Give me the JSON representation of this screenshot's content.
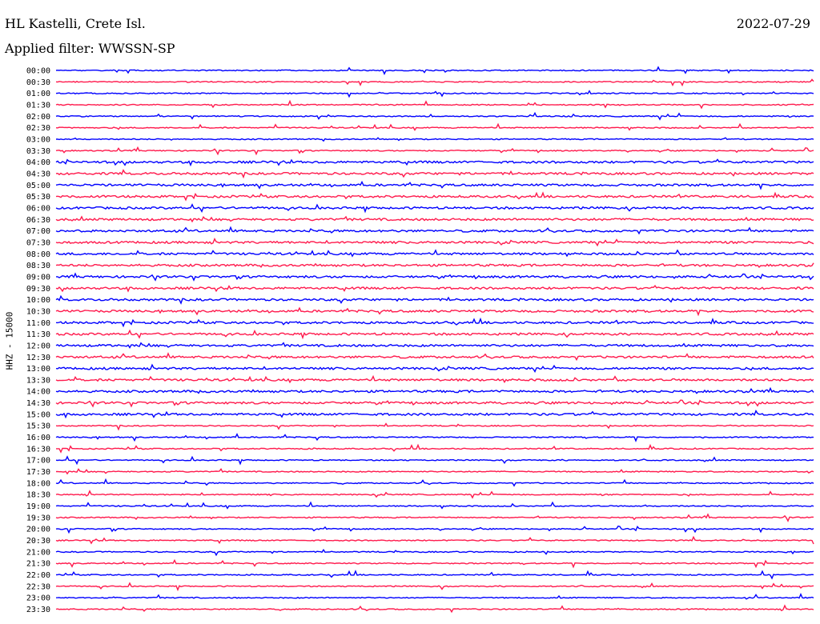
{
  "header": {
    "station": "HL Kastelli, Crete Isl.",
    "date": "2022-07-29",
    "filter": "Applied filter: WWSSN-SP"
  },
  "axis": {
    "channel_label": "HHZ - 15000"
  },
  "chart_data": {
    "type": "line",
    "title": "HL Kastelli, Crete Isl.",
    "date": "2022-07-29",
    "filter": "WWSSN-SP",
    "ylabel": "HHZ - 15000",
    "grid": false,
    "series_colors": [
      "#0000ff",
      "#ff1a4d"
    ],
    "rows": [
      {
        "label": "00:00",
        "color": "#0000ff"
      },
      {
        "label": "00:30",
        "color": "#ff1a4d"
      },
      {
        "label": "01:00",
        "color": "#0000ff"
      },
      {
        "label": "01:30",
        "color": "#ff1a4d"
      },
      {
        "label": "02:00",
        "color": "#0000ff"
      },
      {
        "label": "02:30",
        "color": "#ff1a4d"
      },
      {
        "label": "03:00",
        "color": "#0000ff"
      },
      {
        "label": "03:30",
        "color": "#ff1a4d"
      },
      {
        "label": "04:00",
        "color": "#0000ff"
      },
      {
        "label": "04:30",
        "color": "#ff1a4d"
      },
      {
        "label": "05:00",
        "color": "#0000ff"
      },
      {
        "label": "05:30",
        "color": "#ff1a4d"
      },
      {
        "label": "06:00",
        "color": "#0000ff"
      },
      {
        "label": "06:30",
        "color": "#ff1a4d"
      },
      {
        "label": "07:00",
        "color": "#0000ff"
      },
      {
        "label": "07:30",
        "color": "#ff1a4d"
      },
      {
        "label": "08:00",
        "color": "#0000ff"
      },
      {
        "label": "08:30",
        "color": "#ff1a4d"
      },
      {
        "label": "09:00",
        "color": "#0000ff"
      },
      {
        "label": "09:30",
        "color": "#ff1a4d"
      },
      {
        "label": "10:00",
        "color": "#0000ff"
      },
      {
        "label": "10:30",
        "color": "#ff1a4d"
      },
      {
        "label": "11:00",
        "color": "#0000ff"
      },
      {
        "label": "11:30",
        "color": "#ff1a4d"
      },
      {
        "label": "12:00",
        "color": "#0000ff"
      },
      {
        "label": "12:30",
        "color": "#ff1a4d"
      },
      {
        "label": "13:00",
        "color": "#0000ff"
      },
      {
        "label": "13:30",
        "color": "#ff1a4d"
      },
      {
        "label": "14:00",
        "color": "#0000ff"
      },
      {
        "label": "14:30",
        "color": "#ff1a4d"
      },
      {
        "label": "15:00",
        "color": "#0000ff"
      },
      {
        "label": "15:30",
        "color": "#ff1a4d"
      },
      {
        "label": "16:00",
        "color": "#0000ff"
      },
      {
        "label": "16:30",
        "color": "#ff1a4d"
      },
      {
        "label": "17:00",
        "color": "#0000ff"
      },
      {
        "label": "17:30",
        "color": "#ff1a4d"
      },
      {
        "label": "18:00",
        "color": "#0000ff"
      },
      {
        "label": "18:30",
        "color": "#ff1a4d"
      },
      {
        "label": "19:00",
        "color": "#0000ff"
      },
      {
        "label": "19:30",
        "color": "#ff1a4d"
      },
      {
        "label": "20:00",
        "color": "#0000ff"
      },
      {
        "label": "20:30",
        "color": "#ff1a4d"
      },
      {
        "label": "21:00",
        "color": "#0000ff"
      },
      {
        "label": "21:30",
        "color": "#ff1a4d"
      },
      {
        "label": "22:00",
        "color": "#0000ff"
      },
      {
        "label": "22:30",
        "color": "#ff1a4d"
      },
      {
        "label": "23:00",
        "color": "#0000ff"
      },
      {
        "label": "23:30",
        "color": "#ff1a4d"
      }
    ]
  }
}
